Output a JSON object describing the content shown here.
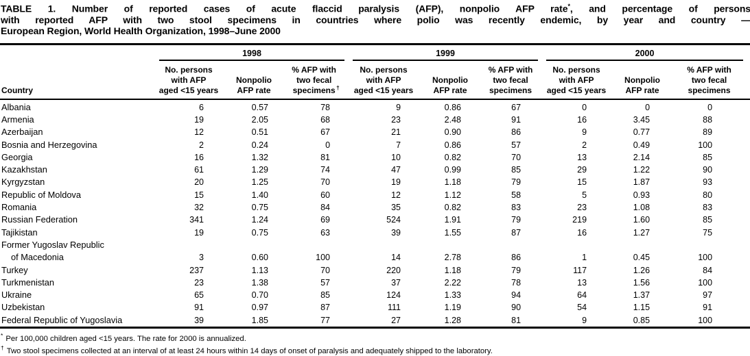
{
  "title": {
    "line1_main": "TABLE 1. Number of reported cases of acute flaccid paralysis (AFP), nonpolio AFP rate",
    "line1_sup": "*",
    "line1_tail": ", and percentage of persons",
    "line2": "with reported AFP with two stool specimens in countries where polio was recently endemic, by year and country —",
    "line3": "European Region, World Health Organization, 1998–June 2000"
  },
  "table": {
    "country_header": "Country",
    "groups": [
      {
        "year": "1998",
        "col1": "No. persons\nwith AFP\naged <15 years",
        "col2": "Nonpolio\nAFP rate",
        "col3": "% AFP with\ntwo fecal\nspecimens",
        "col3_sup": "†"
      },
      {
        "year": "1999",
        "col1": "No. persons\nwith AFP\naged <15 years",
        "col2": "Nonpolio\nAFP rate",
        "col3": "% AFP with\ntwo fecal\nspecimens",
        "col3_sup": ""
      },
      {
        "year": "2000",
        "col1": "No. persons\nwith AFP\naged <15 years",
        "col2": "Nonpolio\nAFP rate",
        "col3": "% AFP with\ntwo fecal\nspecimens",
        "col3_sup": ""
      }
    ],
    "rows": [
      {
        "country": "Albania",
        "indent": false,
        "values": [
          "6",
          "0.57",
          "78",
          "9",
          "0.86",
          "67",
          "0",
          "0",
          "0"
        ]
      },
      {
        "country": "Armenia",
        "indent": false,
        "values": [
          "19",
          "2.05",
          "68",
          "23",
          "2.48",
          "91",
          "16",
          "3.45",
          "88"
        ]
      },
      {
        "country": "Azerbaijan",
        "indent": false,
        "values": [
          "12",
          "0.51",
          "67",
          "21",
          "0.90",
          "86",
          "9",
          "0.77",
          "89"
        ]
      },
      {
        "country": "Bosnia and Herzegovina",
        "indent": false,
        "values": [
          "2",
          "0.24",
          "0",
          "7",
          "0.86",
          "57",
          "2",
          "0.49",
          "100"
        ]
      },
      {
        "country": "Georgia",
        "indent": false,
        "values": [
          "16",
          "1.32",
          "81",
          "10",
          "0.82",
          "70",
          "13",
          "2.14",
          "85"
        ]
      },
      {
        "country": "Kazakhstan",
        "indent": false,
        "values": [
          "61",
          "1.29",
          "74",
          "47",
          "0.99",
          "85",
          "29",
          "1.22",
          "90"
        ]
      },
      {
        "country": "Kyrgyzstan",
        "indent": false,
        "values": [
          "20",
          "1.25",
          "70",
          "19",
          "1.18",
          "79",
          "15",
          "1.87",
          "93"
        ]
      },
      {
        "country": "Republic of Moldova",
        "indent": false,
        "values": [
          "15",
          "1.40",
          "60",
          "12",
          "1.12",
          "58",
          "5",
          "0.93",
          "80"
        ]
      },
      {
        "country": "Romania",
        "indent": false,
        "values": [
          "32",
          "0.75",
          "84",
          "35",
          "0.82",
          "83",
          "23",
          "1.08",
          "83"
        ]
      },
      {
        "country": "Russian Federation",
        "indent": false,
        "values": [
          "341",
          "1.24",
          "69",
          "524",
          "1.91",
          "79",
          "219",
          "1.60",
          "85"
        ]
      },
      {
        "country": "Tajikistan",
        "indent": false,
        "values": [
          "19",
          "0.75",
          "63",
          "39",
          "1.55",
          "87",
          "16",
          "1.27",
          "75"
        ]
      },
      {
        "country": "Former Yugoslav Republic",
        "indent": false,
        "values": [
          "",
          "",
          "",
          "",
          "",
          "",
          "",
          "",
          ""
        ]
      },
      {
        "country": "of Macedonia",
        "indent": true,
        "values": [
          "3",
          "0.60",
          "100",
          "14",
          "2.78",
          "86",
          "1",
          "0.45",
          "100"
        ]
      },
      {
        "country": "Turkey",
        "indent": false,
        "values": [
          "237",
          "1.13",
          "70",
          "220",
          "1.18",
          "79",
          "117",
          "1.26",
          "84"
        ]
      },
      {
        "country": "Turkmenistan",
        "indent": false,
        "values": [
          "23",
          "1.38",
          "57",
          "37",
          "2.22",
          "78",
          "13",
          "1.56",
          "100"
        ]
      },
      {
        "country": "Ukraine",
        "indent": false,
        "values": [
          "65",
          "0.70",
          "85",
          "124",
          "1.33",
          "94",
          "64",
          "1.37",
          "97"
        ]
      },
      {
        "country": "Uzbekistan",
        "indent": false,
        "values": [
          "91",
          "0.97",
          "87",
          "111",
          "1.19",
          "90",
          "54",
          "1.15",
          "91"
        ]
      },
      {
        "country": "Federal Republic of Yugoslavia",
        "indent": false,
        "values": [
          "39",
          "1.85",
          "77",
          "27",
          "1.28",
          "81",
          "9",
          "0.85",
          "100"
        ]
      }
    ]
  },
  "footnotes": [
    {
      "marker": "*",
      "text": "Per 100,000 children aged <15 years. The rate for 2000 is annualized."
    },
    {
      "marker": "†",
      "text": "Two stool specimens collected at an interval of at least 24 hours within 14 days of onset of paralysis and adequately shipped to the laboratory."
    }
  ]
}
